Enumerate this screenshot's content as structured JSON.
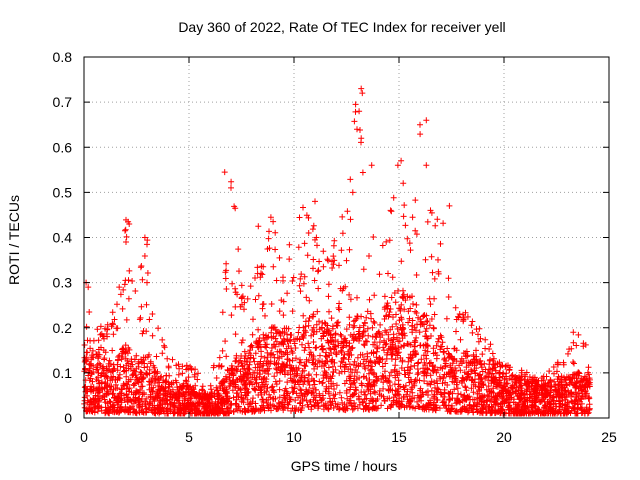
{
  "chart_data": {
    "type": "scatter",
    "title": "Day 360 of 2022, Rate Of TEC Index for receiver yell",
    "xlabel": "GPS time / hours",
    "ylabel": "ROTI / TECUs",
    "xlim": [
      0,
      25
    ],
    "ylim": [
      0,
      0.8
    ],
    "xticks": [
      0,
      5,
      10,
      15,
      20,
      25
    ],
    "yticks": [
      0,
      0.1,
      0.2,
      0.3,
      0.4,
      0.5,
      0.6,
      0.7,
      0.8
    ],
    "xtick_labels": [
      "0",
      "5",
      "10",
      "15",
      "20",
      "25"
    ],
    "ytick_labels": [
      "0",
      "0.1",
      "0.2",
      "0.3",
      "0.4",
      "0.5",
      "0.6",
      "0.7",
      "0.8"
    ],
    "marker": "+",
    "color": "#ff0000",
    "grid": true,
    "series": [
      {
        "name": "ROTI",
        "envelope": {
          "hours": [
            0,
            0.5,
            1,
            1.5,
            2,
            2.5,
            3,
            3.5,
            4,
            4.5,
            5,
            5.5,
            6,
            6.5,
            7,
            7.5,
            8,
            8.5,
            9,
            9.5,
            10,
            10.5,
            11,
            11.5,
            12,
            12.5,
            13,
            13.5,
            14,
            14.5,
            15,
            15.5,
            16,
            16.5,
            17,
            17.5,
            18,
            18.5,
            19,
            19.5,
            20,
            20.5,
            21,
            21.5,
            22,
            22.5,
            23,
            23.5,
            24
          ],
          "typical_roti": [
            0.09,
            0.08,
            0.07,
            0.07,
            0.09,
            0.07,
            0.08,
            0.06,
            0.05,
            0.04,
            0.04,
            0.03,
            0.03,
            0.04,
            0.07,
            0.08,
            0.09,
            0.1,
            0.11,
            0.11,
            0.1,
            0.12,
            0.13,
            0.12,
            0.12,
            0.11,
            0.13,
            0.12,
            0.12,
            0.14,
            0.16,
            0.15,
            0.13,
            0.12,
            0.1,
            0.09,
            0.08,
            0.08,
            0.07,
            0.07,
            0.06,
            0.05,
            0.05,
            0.05,
            0.05,
            0.05,
            0.05,
            0.06,
            0.06
          ],
          "peak_roti": [
            0.3,
            0.22,
            0.2,
            0.25,
            0.44,
            0.3,
            0.4,
            0.22,
            0.15,
            0.12,
            0.12,
            0.1,
            0.1,
            0.15,
            0.55,
            0.3,
            0.3,
            0.43,
            0.45,
            0.35,
            0.42,
            0.48,
            0.42,
            0.38,
            0.4,
            0.5,
            0.73,
            0.56,
            0.46,
            0.42,
            0.58,
            0.4,
            0.66,
            0.47,
            0.48,
            0.26,
            0.25,
            0.22,
            0.2,
            0.16,
            0.13,
            0.1,
            0.11,
            0.09,
            0.1,
            0.12,
            0.15,
            0.19,
            0.17
          ]
        },
        "notable_points": [
          {
            "x": 13.2,
            "y": 0.73
          },
          {
            "x": 13.25,
            "y": 0.72
          },
          {
            "x": 13.1,
            "y": 0.68
          },
          {
            "x": 13.0,
            "y": 0.64
          },
          {
            "x": 13.2,
            "y": 0.62
          },
          {
            "x": 16.0,
            "y": 0.65
          },
          {
            "x": 16.3,
            "y": 0.66
          },
          {
            "x": 16.3,
            "y": 0.56
          },
          {
            "x": 15.1,
            "y": 0.57
          },
          {
            "x": 13.7,
            "y": 0.56
          },
          {
            "x": 6.7,
            "y": 0.545
          },
          {
            "x": 7.0,
            "y": 0.51
          },
          {
            "x": 15.2,
            "y": 0.52
          },
          {
            "x": 12.8,
            "y": 0.5
          },
          {
            "x": 11.0,
            "y": 0.48
          },
          {
            "x": 17.4,
            "y": 0.47
          },
          {
            "x": 7.2,
            "y": 0.465
          },
          {
            "x": 14.6,
            "y": 0.46
          },
          {
            "x": 16.5,
            "y": 0.46
          },
          {
            "x": 8.9,
            "y": 0.445
          },
          {
            "x": 2.1,
            "y": 0.435
          },
          {
            "x": 2.15,
            "y": 0.43
          },
          {
            "x": 8.3,
            "y": 0.425
          },
          {
            "x": 2.9,
            "y": 0.4
          },
          {
            "x": 2.0,
            "y": 0.39
          },
          {
            "x": 10.7,
            "y": 0.41
          },
          {
            "x": 0.1,
            "y": 0.3
          },
          {
            "x": 0.2,
            "y": 0.29
          },
          {
            "x": 3.0,
            "y": 0.3
          },
          {
            "x": 23.3,
            "y": 0.19
          }
        ]
      }
    ]
  }
}
